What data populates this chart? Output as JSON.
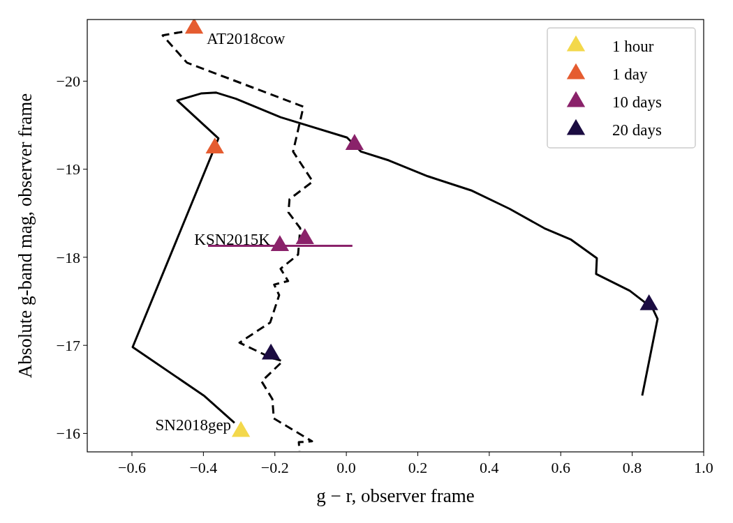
{
  "chart_data": {
    "type": "line",
    "xlabel": "g − r, observer frame",
    "ylabel": "Absolute g-band mag, observer frame",
    "xlim": [
      -0.725,
      1.0
    ],
    "ylim": [
      -15.79,
      -20.7
    ],
    "xticks": [
      {
        "value": -0.6,
        "label": "−0.6"
      },
      {
        "value": -0.4,
        "label": "−0.4"
      },
      {
        "value": -0.2,
        "label": "−0.2"
      },
      {
        "value": 0,
        "label": "0.0"
      },
      0.2,
      0.4,
      0.6,
      0.8,
      {
        "value": 1,
        "label": "1.0"
      }
    ],
    "yticks": [
      {
        "value": -20,
        "label": "−20"
      },
      {
        "value": -19,
        "label": "−19"
      },
      {
        "value": -18,
        "label": "−18"
      },
      {
        "value": -17,
        "label": "−17"
      },
      {
        "value": -16,
        "label": "−16"
      }
    ],
    "grid": false,
    "legend": "top right",
    "series": [
      {
        "color": "#000000",
        "line_style": "solid",
        "marker": "none",
        "x": [
          -0.313,
          -0.399,
          -0.598,
          -0.358,
          -0.473,
          -0.407,
          -0.364,
          -0.309,
          -0.184,
          0.002,
          0.041,
          0.119,
          0.228,
          0.349,
          0.457,
          0.554,
          0.629,
          0.701,
          0.699,
          0.793,
          0.857,
          0.871,
          0.828
        ],
        "values": [
          -16.12,
          -16.43,
          -16.98,
          -19.35,
          -19.78,
          -19.86,
          -19.87,
          -19.8,
          -19.59,
          -19.36,
          -19.2,
          -19.1,
          -18.92,
          -18.76,
          -18.55,
          -18.33,
          -18.2,
          -17.99,
          -17.81,
          -17.62,
          -17.42,
          -17.3,
          -16.43
        ]
      },
      {
        "color": "#000000",
        "line_style": "dashed",
        "marker": "none",
        "x": [
          -0.459,
          -0.514,
          -0.446,
          -0.12,
          -0.149,
          -0.094,
          -0.159,
          -0.162,
          -0.129,
          -0.135,
          -0.184,
          -0.163,
          -0.202,
          -0.188,
          -0.213,
          -0.299,
          -0.211,
          -0.178,
          -0.237,
          -0.207,
          -0.203,
          -0.096,
          -0.133,
          -0.131
        ],
        "values": [
          -20.56,
          -20.52,
          -20.21,
          -19.71,
          -19.2,
          -18.86,
          -18.66,
          -18.51,
          -18.33,
          -18.03,
          -17.87,
          -17.73,
          -17.69,
          -17.57,
          -17.26,
          -17.03,
          -16.86,
          -16.82,
          -16.59,
          -16.39,
          -16.17,
          -15.91,
          -15.9,
          -15.8
        ]
      },
      {
        "type": "scatter",
        "name": "1 hour",
        "color": "#f3d84b",
        "marker": "triangle",
        "x": [
          -0.295
        ],
        "values": [
          -16.02
        ]
      },
      {
        "type": "scatter",
        "name": "1 day",
        "color": "#e55c30",
        "marker": "triangle",
        "x": [
          -0.426,
          -0.368
        ],
        "values": [
          -20.6,
          -19.24
        ]
      },
      {
        "type": "scatter",
        "name": "10 days",
        "color": "#8a226a",
        "marker": "triangle",
        "x": [
          0.023,
          -0.186,
          -0.116
        ],
        "values": [
          -19.28,
          -18.13,
          -18.21
        ],
        "xerrors": [
          null,
          [
            -0.387,
            0.017
          ],
          null
        ]
      },
      {
        "type": "scatter",
        "name": "20 days",
        "color": "#1b0c41",
        "marker": "triangle",
        "x": [
          0.847,
          -0.211
        ],
        "values": [
          -17.46,
          -16.9
        ]
      }
    ],
    "annotations": [
      {
        "text": "AT2018cow",
        "x": -0.426,
        "y": -20.6
      },
      {
        "text": "KSN2015K",
        "x": -0.186,
        "y": -18.13
      },
      {
        "text": "SN2018gep",
        "x": -0.295,
        "y": -16.02
      }
    ]
  }
}
